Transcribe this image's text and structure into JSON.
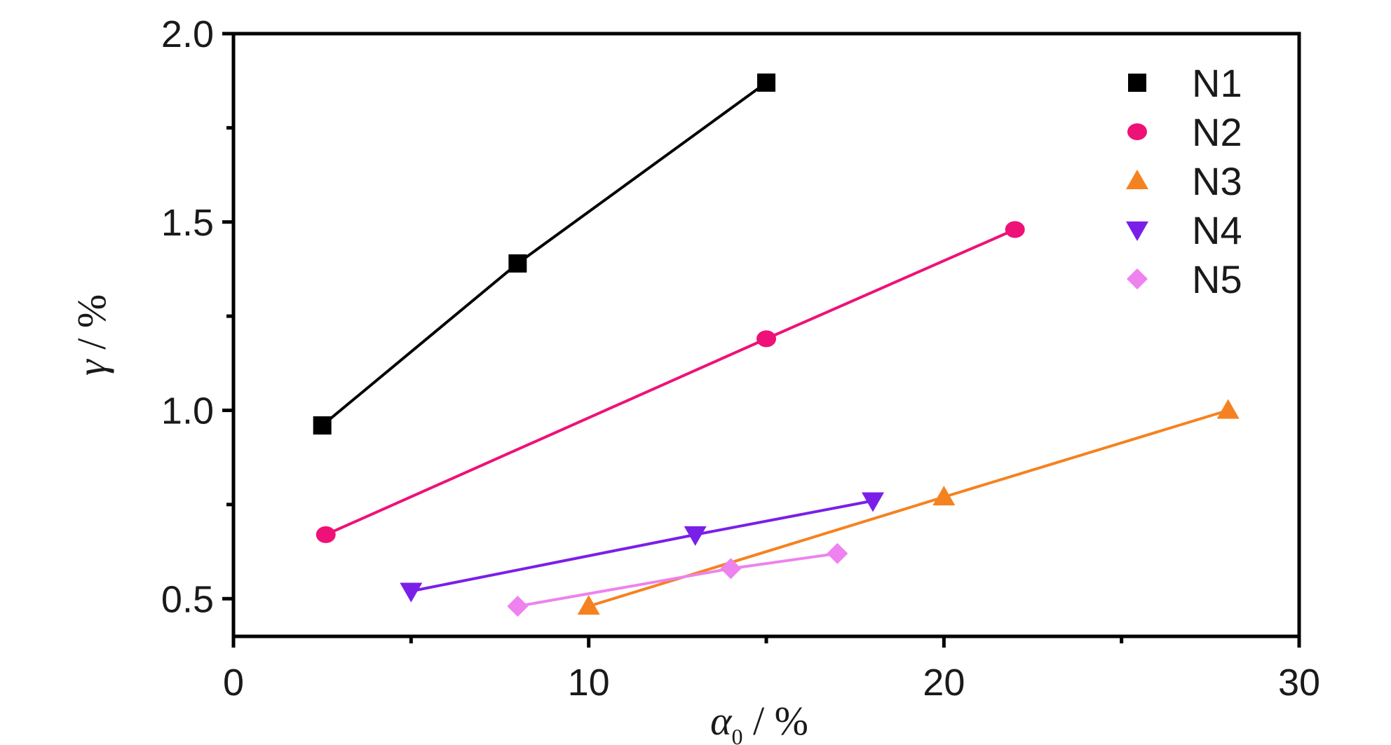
{
  "chart_data": {
    "type": "line",
    "title": "",
    "xlabel": {
      "symbol": "α",
      "subscript": "0",
      "unit": " / %"
    },
    "ylabel": {
      "symbol": "γ",
      "unit": "  / %"
    },
    "xlim": [
      0,
      30
    ],
    "ylim": [
      0.4,
      2.0
    ],
    "xticks": [
      0,
      10,
      20,
      30
    ],
    "xticks_minor": [
      5,
      15,
      25
    ],
    "yticks": [
      0.5,
      1.0,
      1.5,
      2.0
    ],
    "yticks_minor": [
      0.75,
      1.25,
      1.75
    ],
    "ytick_labels": [
      "0.5",
      "1.0",
      "1.5",
      "2.0"
    ],
    "xtick_labels": [
      "0",
      "10",
      "20",
      "30"
    ],
    "grid": false,
    "legend_position": "top-right",
    "series": [
      {
        "name": "N1",
        "marker": "square",
        "color": "#000000",
        "x": [
          2.5,
          8,
          15
        ],
        "y": [
          0.96,
          1.39,
          1.87
        ]
      },
      {
        "name": "N2",
        "marker": "circle",
        "color": "#ee1177",
        "x": [
          2.6,
          15,
          22
        ],
        "y": [
          0.67,
          1.19,
          1.48
        ]
      },
      {
        "name": "N3",
        "marker": "triangle-up",
        "color": "#f58220",
        "x": [
          10,
          20,
          28
        ],
        "y": [
          0.48,
          0.77,
          1.0
        ]
      },
      {
        "name": "N4",
        "marker": "triangle-down",
        "color": "#7a1fe8",
        "x": [
          5,
          13,
          18
        ],
        "y": [
          0.52,
          0.67,
          0.76
        ]
      },
      {
        "name": "N5",
        "marker": "diamond",
        "color": "#ee82ee",
        "x": [
          8,
          14,
          17
        ],
        "y": [
          0.48,
          0.58,
          0.62
        ]
      }
    ]
  }
}
